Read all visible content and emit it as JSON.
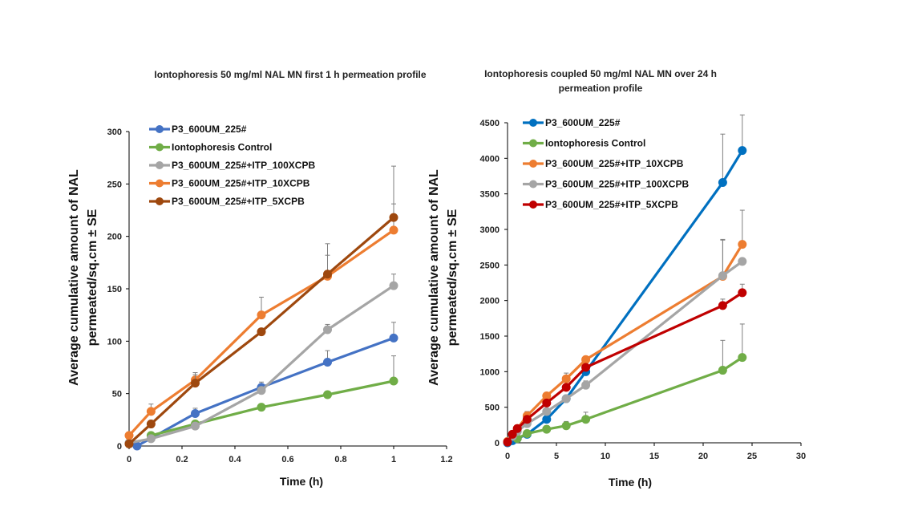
{
  "chart_data": [
    {
      "type": "line",
      "title": "Iontophoresis 50  mg/ml NAL MN first 1 h permeation profile",
      "xlabel": "Time (h)",
      "ylabel": [
        "Average cumulative amount of NAL",
        "permeated/sq.cm ± SE"
      ],
      "xlim": [
        0,
        1.2
      ],
      "ylim": [
        0,
        300
      ],
      "x_ticks": [
        "0",
        "0.2",
        "0.4",
        "0.6",
        "0.8",
        "1",
        "1.2"
      ],
      "y_ticks": [
        "0",
        "50",
        "100",
        "150",
        "200",
        "250",
        "300"
      ],
      "grid": false,
      "legend": "top-left",
      "series": [
        {
          "name": "P3_600UM_225#",
          "color": "#4472c4",
          "x": [
            0.03,
            0.25,
            0.5,
            0.75,
            1
          ],
          "y": [
            0,
            31,
            56,
            80,
            103
          ],
          "err": [
            0,
            5,
            5,
            11,
            15
          ]
        },
        {
          "name": "Iontophoresis Control",
          "color": "#70ad47",
          "x": [
            0.083,
            0.25,
            0.5,
            0.75,
            1
          ],
          "y": [
            10,
            21,
            37,
            49,
            62
          ],
          "err": [
            2,
            3,
            0,
            0,
            24
          ]
        },
        {
          "name": "P3_600UM_225#+ITP_100XCPB",
          "color": "#a5a5a5",
          "x": [
            0,
            0.083,
            0.25,
            0.5,
            0.75,
            1
          ],
          "y": [
            3,
            7,
            19,
            53,
            111,
            153
          ],
          "err": [
            0,
            2,
            0,
            0,
            5,
            11
          ]
        },
        {
          "name": "P3_600UM_225#+ITP_10XCPB",
          "color": "#ed7d31",
          "x": [
            0,
            0.083,
            0.25,
            0.5,
            0.75,
            1
          ],
          "y": [
            10,
            33,
            63,
            125,
            162,
            206
          ],
          "err": [
            0,
            7,
            7,
            17,
            20,
            25
          ]
        },
        {
          "name": "P3_600UM_225#+ITP_5XCPB",
          "color": "#9e480e",
          "x": [
            0,
            0.083,
            0.25,
            0.5,
            0.75,
            1
          ],
          "y": [
            2,
            21,
            60,
            109,
            164,
            218
          ],
          "err": [
            0,
            0,
            8,
            0,
            29,
            49
          ]
        }
      ]
    },
    {
      "type": "line",
      "title": [
        "Iontophoresis coupled  50 mg/ml NAL MN over 24 h",
        "permeation profile"
      ],
      "xlabel": "Time (h)",
      "ylabel": [
        "Average  cumulative amount of NAL",
        "permeated/sq.cm ± SE"
      ],
      "xlim": [
        0,
        30
      ],
      "ylim": [
        0,
        4500
      ],
      "x_ticks": [
        "0",
        "5",
        "10",
        "15",
        "20",
        "25",
        "30"
      ],
      "y_ticks": [
        "0",
        "500",
        "1000",
        "1500",
        "2000",
        "2500",
        "3000",
        "3500",
        "4000",
        "4500"
      ],
      "grid": false,
      "legend": "top-left",
      "series": [
        {
          "name": "P3_600UM_225#",
          "color": "#0070c0",
          "x": [
            0,
            0.5,
            1,
            2,
            4,
            6,
            8,
            22,
            24
          ],
          "y": [
            0,
            30,
            60,
            120,
            330,
            620,
            1000,
            3660,
            4110
          ],
          "err": [
            0,
            0,
            0,
            0,
            0,
            0,
            0,
            680,
            500
          ]
        },
        {
          "name": "Iontophoresis Control",
          "color": "#70ad47",
          "x": [
            1,
            2,
            4,
            6,
            8,
            22,
            24
          ],
          "y": [
            60,
            130,
            190,
            240,
            330,
            1020,
            1200
          ],
          "err": [
            0,
            0,
            50,
            60,
            100,
            420,
            470
          ]
        },
        {
          "name": "P3_600UM_225#+ITP_10XCPB",
          "color": "#ed7d31",
          "x": [
            0,
            0.5,
            1,
            2,
            4,
            6,
            8,
            22,
            24
          ],
          "y": [
            20,
            120,
            200,
            380,
            660,
            900,
            1170,
            2340,
            2790
          ],
          "err": [
            0,
            0,
            0,
            60,
            0,
            80,
            0,
            520,
            480
          ]
        },
        {
          "name": "P3_600UM_225#+ITP_100XCPB",
          "color": "#a5a5a5",
          "x": [
            0,
            0.5,
            1,
            2,
            4,
            6,
            8,
            22,
            24
          ],
          "y": [
            10,
            90,
            160,
            270,
            440,
            620,
            810,
            2350,
            2550
          ],
          "err": [
            0,
            0,
            0,
            0,
            0,
            0,
            60,
            500,
            0
          ]
        },
        {
          "name": "P3_600UM_225#+ITP_5XCPB",
          "color": "#c00000",
          "x": [
            0,
            0.5,
            1,
            2,
            4,
            6,
            8,
            22,
            24
          ],
          "y": [
            10,
            120,
            200,
            330,
            560,
            780,
            1060,
            1930,
            2110
          ],
          "err": [
            0,
            0,
            0,
            0,
            0,
            0,
            0,
            90,
            120
          ]
        }
      ]
    }
  ]
}
